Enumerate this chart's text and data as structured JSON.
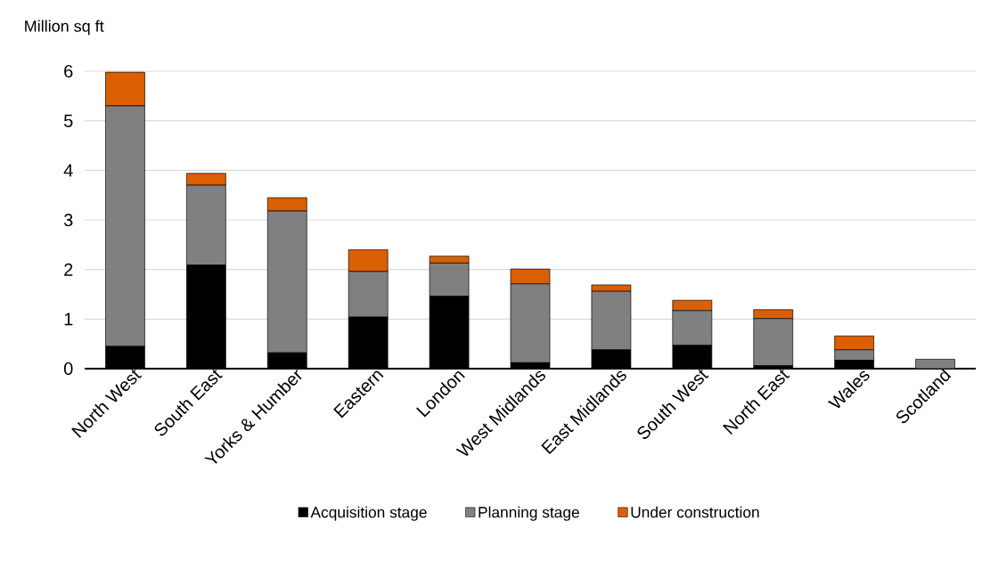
{
  "chart_data": {
    "type": "bar",
    "stacked": true,
    "ylabel": "Million sq ft",
    "categories": [
      "North West",
      "South East",
      "Yorks & Humber",
      "Eastern",
      "London",
      "West Midlands",
      "East Midlands",
      "South West",
      "North East",
      "Wales",
      "Scotland"
    ],
    "series": [
      {
        "name": "Acquisition stage",
        "color": "#000000",
        "values": [
          0.45,
          2.09,
          0.32,
          1.04,
          1.46,
          0.12,
          0.38,
          0.47,
          0.06,
          0.17,
          0
        ]
      },
      {
        "name": "Planning stage",
        "color": "#808080",
        "values": [
          4.85,
          1.61,
          2.86,
          0.92,
          0.67,
          1.59,
          1.18,
          0.7,
          0.95,
          0.21,
          0.19
        ]
      },
      {
        "name": "Under construction",
        "color": "#d95f02",
        "values": [
          0.68,
          0.24,
          0.27,
          0.44,
          0.14,
          0.3,
          0.13,
          0.21,
          0.18,
          0.28,
          0
        ]
      }
    ],
    "ylim": [
      0,
      6
    ],
    "yticks": [
      0,
      1,
      2,
      3,
      4,
      5,
      6
    ],
    "grid": "y",
    "legend": "bottom"
  }
}
